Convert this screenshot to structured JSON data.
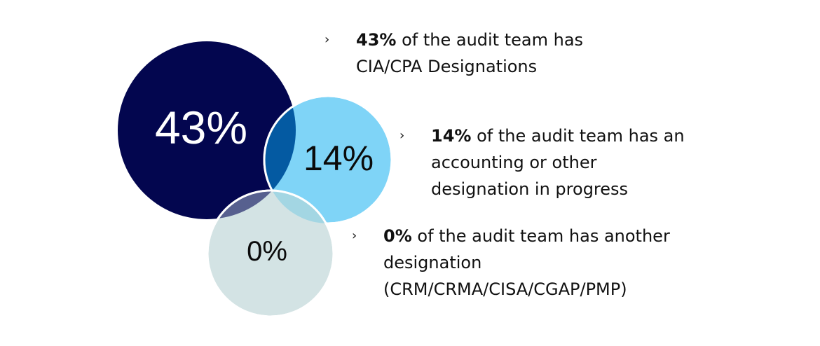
{
  "circles": [
    {
      "label": "43%",
      "color": "#03064f",
      "text_color": "#ffffff"
    },
    {
      "label": "14%",
      "color": "#7fd4f7",
      "text_color": "#0b0b0b"
    },
    {
      "label": "0%",
      "color": "#d3e3e4",
      "text_color": "#0b0b0b"
    }
  ],
  "overlap_colors": {
    "first_second": "#045aa2",
    "first_third": "#57608f",
    "second_third": "#a3d6e3"
  },
  "bullet_icon": "chevron-right",
  "items": [
    {
      "bullet": "›",
      "bold": "43%",
      "line1": " of the audit team has",
      "line2": "CIA/CPA Designations",
      "line3": ""
    },
    {
      "bullet": "›",
      "bold": "14%",
      "line1": " of the audit team has an",
      "line2": "accounting or other",
      "line3": "designation in progress"
    },
    {
      "bullet": "›",
      "bold": "0%",
      "line1": " of the audit team has another",
      "line2": "designation",
      "line3": "(CRM/CRMA/CISA/CGAP/PMP)"
    }
  ]
}
